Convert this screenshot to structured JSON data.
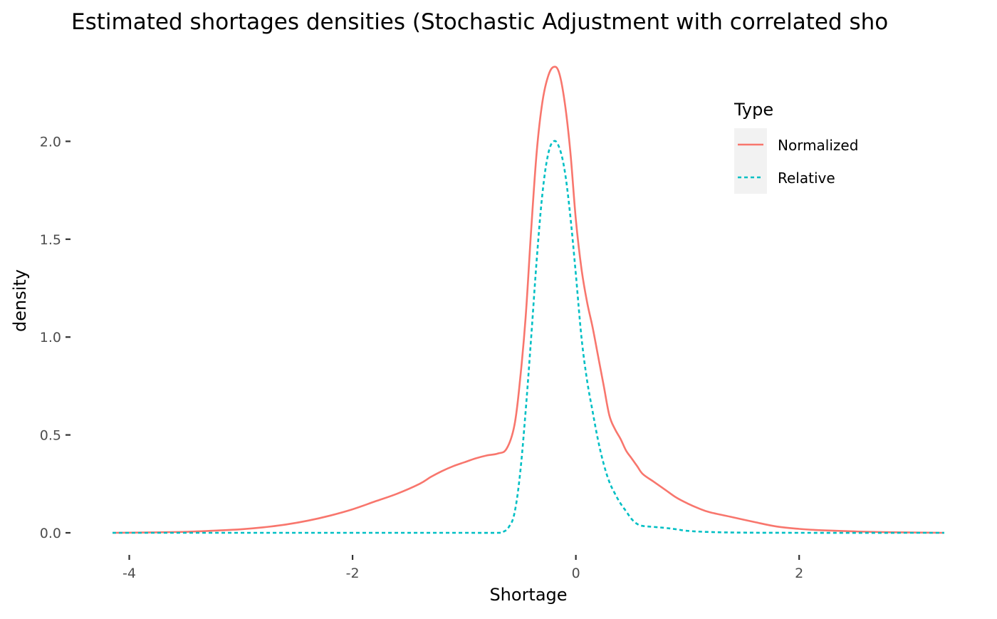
{
  "chart_data": {
    "type": "area",
    "title": "Estimated shortages densities (Stochastic Adjustment with correlated sho",
    "xlabel": "Shortage",
    "ylabel": "density",
    "xlim": [
      -4.15,
      3.3
    ],
    "ylim": [
      0,
      2.38
    ],
    "x_ticks": [
      {
        "value": -4,
        "label": "-4"
      },
      {
        "value": -2,
        "label": "-2"
      },
      {
        "value": 0,
        "label": "0"
      },
      {
        "value": 2,
        "label": "2"
      }
    ],
    "y_ticks": [
      {
        "value": 0.0,
        "label": "0.0"
      },
      {
        "value": 0.5,
        "label": "0.5"
      },
      {
        "value": 1.0,
        "label": "1.0"
      },
      {
        "value": 1.5,
        "label": "1.5"
      },
      {
        "value": 2.0,
        "label": "2.0"
      }
    ],
    "grid": false,
    "legend": {
      "title": "Type",
      "position": "top-right"
    },
    "series": [
      {
        "name": "Normalized",
        "color": "#F8766D",
        "dash": "solid",
        "points": [
          [
            -4.15,
            0.0
          ],
          [
            -3.8,
            0.002
          ],
          [
            -3.5,
            0.005
          ],
          [
            -3.2,
            0.012
          ],
          [
            -3.0,
            0.018
          ],
          [
            -2.8,
            0.028
          ],
          [
            -2.6,
            0.042
          ],
          [
            -2.4,
            0.062
          ],
          [
            -2.2,
            0.088
          ],
          [
            -2.0,
            0.12
          ],
          [
            -1.8,
            0.16
          ],
          [
            -1.6,
            0.2
          ],
          [
            -1.4,
            0.25
          ],
          [
            -1.3,
            0.285
          ],
          [
            -1.2,
            0.315
          ],
          [
            -1.1,
            0.34
          ],
          [
            -1.0,
            0.36
          ],
          [
            -0.9,
            0.38
          ],
          [
            -0.8,
            0.395
          ],
          [
            -0.7,
            0.405
          ],
          [
            -0.62,
            0.43
          ],
          [
            -0.55,
            0.55
          ],
          [
            -0.5,
            0.78
          ],
          [
            -0.45,
            1.1
          ],
          [
            -0.4,
            1.55
          ],
          [
            -0.35,
            1.95
          ],
          [
            -0.3,
            2.2
          ],
          [
            -0.25,
            2.33
          ],
          [
            -0.2,
            2.38
          ],
          [
            -0.15,
            2.35
          ],
          [
            -0.1,
            2.2
          ],
          [
            -0.05,
            1.95
          ],
          [
            0.0,
            1.6
          ],
          [
            0.05,
            1.35
          ],
          [
            0.1,
            1.18
          ],
          [
            0.15,
            1.05
          ],
          [
            0.2,
            0.9
          ],
          [
            0.25,
            0.75
          ],
          [
            0.3,
            0.6
          ],
          [
            0.35,
            0.53
          ],
          [
            0.4,
            0.48
          ],
          [
            0.45,
            0.42
          ],
          [
            0.5,
            0.38
          ],
          [
            0.55,
            0.34
          ],
          [
            0.6,
            0.3
          ],
          [
            0.7,
            0.26
          ],
          [
            0.8,
            0.22
          ],
          [
            0.9,
            0.18
          ],
          [
            1.0,
            0.15
          ],
          [
            1.1,
            0.125
          ],
          [
            1.2,
            0.105
          ],
          [
            1.4,
            0.08
          ],
          [
            1.6,
            0.055
          ],
          [
            1.8,
            0.032
          ],
          [
            2.0,
            0.02
          ],
          [
            2.2,
            0.013
          ],
          [
            2.5,
            0.007
          ],
          [
            2.8,
            0.003
          ],
          [
            3.3,
            0.0
          ]
        ]
      },
      {
        "name": "Relative",
        "color": "#00BFC4",
        "dash": "dotted",
        "points": [
          [
            -4.15,
            0.0
          ],
          [
            -3.0,
            0.0
          ],
          [
            -2.0,
            0.0
          ],
          [
            -1.0,
            0.0
          ],
          [
            -0.7,
            0.0
          ],
          [
            -0.65,
            0.005
          ],
          [
            -0.6,
            0.03
          ],
          [
            -0.55,
            0.1
          ],
          [
            -0.5,
            0.3
          ],
          [
            -0.45,
            0.62
          ],
          [
            -0.4,
            1.0
          ],
          [
            -0.35,
            1.4
          ],
          [
            -0.3,
            1.73
          ],
          [
            -0.25,
            1.93
          ],
          [
            -0.2,
            2.0
          ],
          [
            -0.15,
            1.97
          ],
          [
            -0.1,
            1.85
          ],
          [
            -0.05,
            1.62
          ],
          [
            0.0,
            1.32
          ],
          [
            0.05,
            1.0
          ],
          [
            0.1,
            0.78
          ],
          [
            0.15,
            0.62
          ],
          [
            0.2,
            0.47
          ],
          [
            0.25,
            0.35
          ],
          [
            0.3,
            0.26
          ],
          [
            0.35,
            0.2
          ],
          [
            0.4,
            0.15
          ],
          [
            0.45,
            0.11
          ],
          [
            0.5,
            0.07
          ],
          [
            0.55,
            0.045
          ],
          [
            0.6,
            0.035
          ],
          [
            0.7,
            0.03
          ],
          [
            0.8,
            0.025
          ],
          [
            0.9,
            0.018
          ],
          [
            1.0,
            0.01
          ],
          [
            1.2,
            0.004
          ],
          [
            1.5,
            0.001
          ],
          [
            2.0,
            0.0
          ],
          [
            3.3,
            0.0
          ]
        ]
      }
    ]
  }
}
